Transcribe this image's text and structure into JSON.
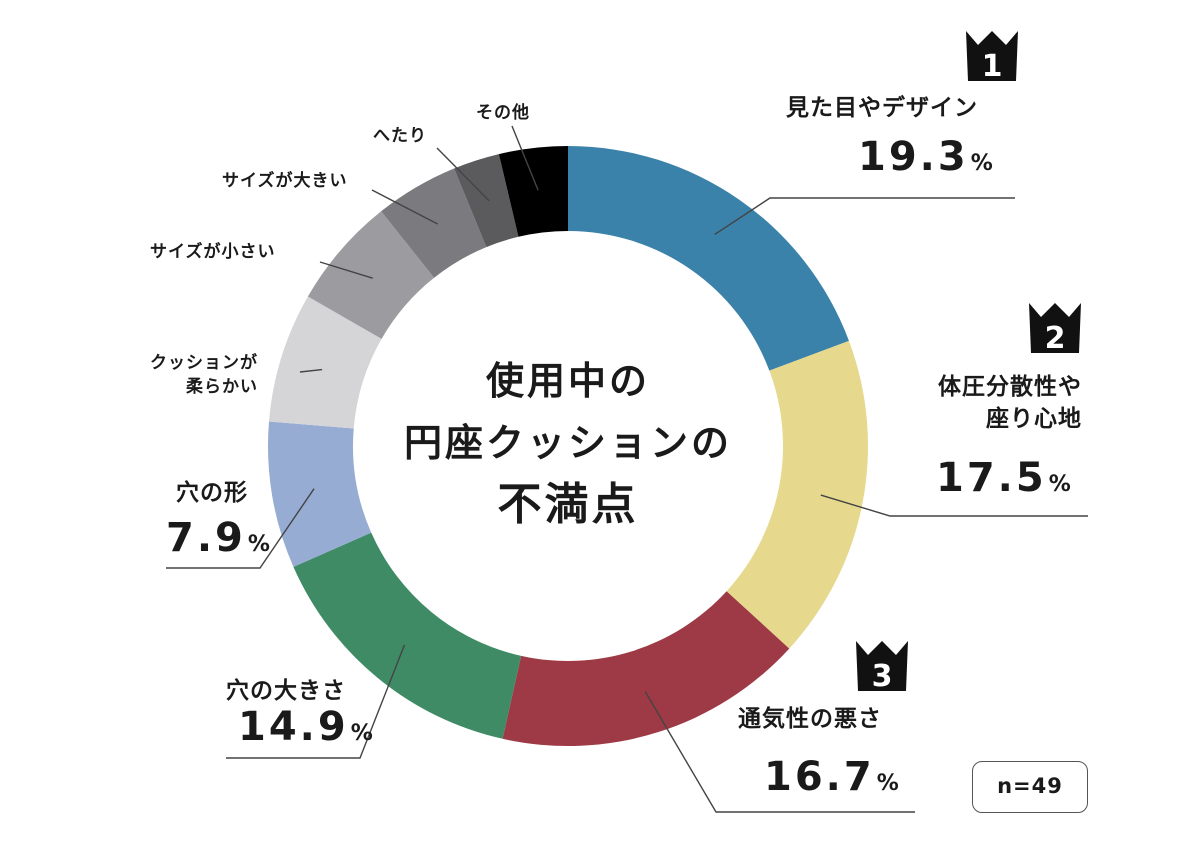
{
  "title": {
    "line1": "使用中の",
    "line2": "円座クッションの",
    "line3": "不満点"
  },
  "sample": "n=49",
  "unit": "%",
  "chart_data": {
    "type": "pie",
    "subtype": "donut",
    "title": "使用中の円座クッションの不満点",
    "categories": [
      "見た目やデザイン",
      "体圧分散性や座り心地",
      "通気性の悪さ",
      "穴の大きさ",
      "穴の形",
      "クッションが柔らかい",
      "サイズが小さい",
      "サイズが大きい",
      "へたり",
      "その他"
    ],
    "values": [
      19.3,
      17.5,
      16.7,
      14.9,
      7.9,
      7.0,
      6.0,
      4.5,
      2.5,
      3.7
    ],
    "value_labels": [
      "19.3",
      "17.5",
      "16.7",
      "14.9",
      "7.9",
      null,
      null,
      null,
      null,
      null
    ],
    "colors": [
      "#3a82aa",
      "#e6d98d",
      "#9e3a45",
      "#3f8b66",
      "#97acd2",
      "#d5d5d8",
      "#9c9ca0",
      "#7b7b7f",
      "#5b5b5e",
      "#000000"
    ],
    "ranks": [
      "1",
      "2",
      "3"
    ],
    "category_lines": {
      "cushion_soft": [
        "クッションが",
        "柔らかい"
      ],
      "pressure": [
        "体圧分散性や",
        "座り心地"
      ]
    }
  }
}
